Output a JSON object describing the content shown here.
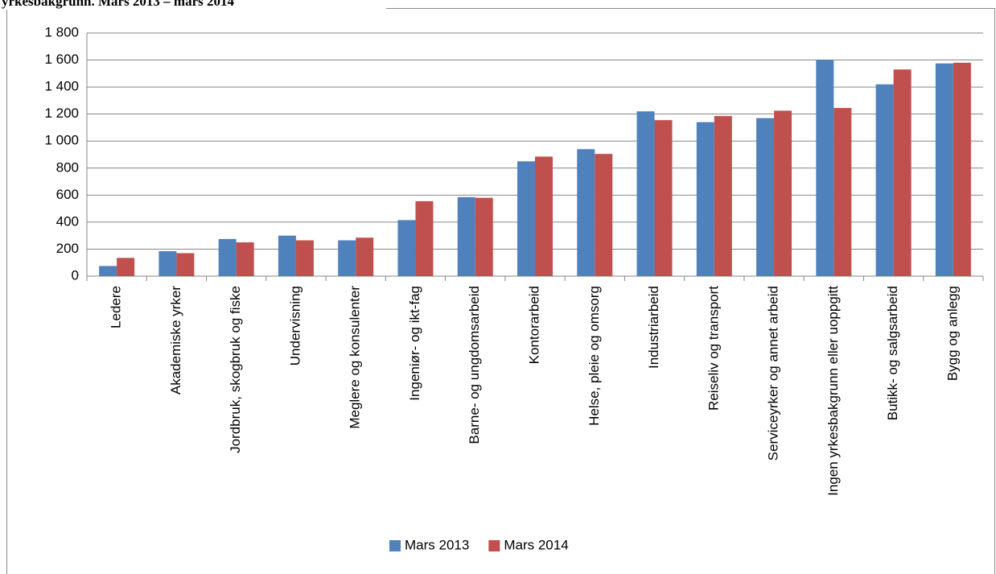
{
  "chart_data": {
    "type": "bar",
    "title": "yrkesbakgrunn. Mars 2013 – mars 2014",
    "categories": [
      "Ledere",
      "Akademiske yrker",
      "Jordbruk, skogbruk og fiske",
      "Undervisning",
      "Meglere og konsulenter",
      "Ingeniør- og ikt-fag",
      "Barne- og ungdomsarbeid",
      "Kontorarbeid",
      "Helse, pleie og omsorg",
      "Industriarbeid",
      "Reiseliv og transport",
      "Serviceyrker og annet arbeid",
      "Ingen yrkesbakgrunn eller uoppgitt",
      "Butikk- og salgsarbeid",
      "Bygg og anlegg"
    ],
    "series": [
      {
        "name": "Mars 2013",
        "color": "#4f81bd",
        "values": [
          75,
          185,
          275,
          300,
          265,
          415,
          585,
          850,
          940,
          1220,
          1140,
          1170,
          1600,
          1420,
          1575
        ]
      },
      {
        "name": "Mars 2014",
        "color": "#c0504d",
        "values": [
          135,
          170,
          250,
          265,
          285,
          555,
          580,
          885,
          905,
          1155,
          1185,
          1225,
          1245,
          1530,
          1580
        ]
      }
    ],
    "ylim": [
      0,
      1800
    ],
    "yticks": [
      0,
      200,
      400,
      600,
      800,
      {
        "value": 1000,
        "label": "1 000"
      },
      {
        "value": 1200,
        "label": "1 200"
      },
      {
        "value": 1400,
        "label": "1 400"
      },
      {
        "value": 1600,
        "label": "1 600"
      },
      {
        "value": 1800,
        "label": "1 800"
      }
    ],
    "grid": true,
    "legend": "bottom"
  }
}
